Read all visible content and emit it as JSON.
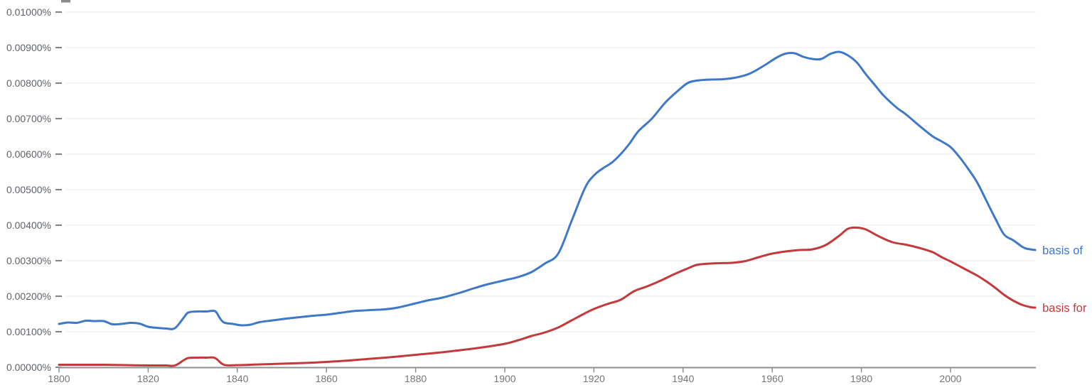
{
  "chart_data": {
    "type": "line",
    "title": "",
    "xlabel": "",
    "ylabel": "",
    "grid": true,
    "legend_position": "line-end-labels-right",
    "x_axis": {
      "tick_years": [
        1800,
        1820,
        1840,
        1860,
        1880,
        1900,
        1920,
        1940,
        1960,
        1980,
        2000
      ],
      "range": [
        1800,
        2019
      ]
    },
    "y_axis": {
      "unit": "%",
      "range": [
        0,
        0.01
      ],
      "ticks": [
        {
          "label": "0.00000%",
          "value": 0.0
        },
        {
          "label": "0.00100%",
          "value": 0.001
        },
        {
          "label": "0.00200%",
          "value": 0.002
        },
        {
          "label": "0.00300%",
          "value": 0.003
        },
        {
          "label": "0.00400%",
          "value": 0.004
        },
        {
          "label": "0.00500%",
          "value": 0.005
        },
        {
          "label": "0.00600%",
          "value": 0.006
        },
        {
          "label": "0.00700%",
          "value": 0.007
        },
        {
          "label": "0.00800%",
          "value": 0.008
        },
        {
          "label": "0.00900%",
          "value": 0.009
        },
        {
          "label": "0.01000%",
          "value": 0.01
        }
      ]
    },
    "series": [
      {
        "name": "basis of",
        "color": "#3e78c8",
        "points": [
          [
            1800,
            0.00122
          ],
          [
            1802,
            0.00126
          ],
          [
            1804,
            0.00125
          ],
          [
            1806,
            0.00131
          ],
          [
            1808,
            0.0013
          ],
          [
            1810,
            0.0013
          ],
          [
            1812,
            0.00121
          ],
          [
            1814,
            0.00122
          ],
          [
            1816,
            0.00125
          ],
          [
            1818,
            0.00123
          ],
          [
            1820,
            0.00114
          ],
          [
            1822,
            0.00111
          ],
          [
            1824,
            0.00109
          ],
          [
            1826,
            0.0011
          ],
          [
            1828,
            0.0014
          ],
          [
            1829,
            0.00154
          ],
          [
            1831,
            0.00157
          ],
          [
            1833,
            0.00157
          ],
          [
            1835,
            0.00158
          ],
          [
            1836,
            0.0014
          ],
          [
            1837,
            0.00126
          ],
          [
            1839,
            0.00122
          ],
          [
            1841,
            0.00118
          ],
          [
            1843,
            0.0012
          ],
          [
            1845,
            0.00127
          ],
          [
            1848,
            0.00132
          ],
          [
            1851,
            0.00137
          ],
          [
            1854,
            0.00141
          ],
          [
            1857,
            0.00145
          ],
          [
            1860,
            0.00148
          ],
          [
            1863,
            0.00153
          ],
          [
            1866,
            0.00158
          ],
          [
            1870,
            0.00161
          ],
          [
            1873,
            0.00163
          ],
          [
            1876,
            0.00168
          ],
          [
            1880,
            0.0018
          ],
          [
            1883,
            0.00189
          ],
          [
            1886,
            0.00196
          ],
          [
            1890,
            0.0021
          ],
          [
            1893,
            0.00222
          ],
          [
            1896,
            0.00233
          ],
          [
            1900,
            0.00245
          ],
          [
            1903,
            0.00254
          ],
          [
            1906,
            0.00268
          ],
          [
            1909,
            0.00292
          ],
          [
            1912,
            0.0032
          ],
          [
            1915,
            0.00412
          ],
          [
            1918,
            0.00505
          ],
          [
            1920,
            0.0054
          ],
          [
            1922,
            0.0056
          ],
          [
            1924,
            0.00576
          ],
          [
            1926,
            0.006
          ],
          [
            1928,
            0.0063
          ],
          [
            1930,
            0.00665
          ],
          [
            1933,
            0.007
          ],
          [
            1936,
            0.00745
          ],
          [
            1939,
            0.0078
          ],
          [
            1941,
            0.008
          ],
          [
            1943,
            0.00807
          ],
          [
            1946,
            0.0081
          ],
          [
            1949,
            0.00811
          ],
          [
            1952,
            0.00816
          ],
          [
            1955,
            0.00827
          ],
          [
            1958,
            0.00848
          ],
          [
            1961,
            0.00872
          ],
          [
            1963,
            0.00883
          ],
          [
            1965,
            0.00884
          ],
          [
            1967,
            0.00874
          ],
          [
            1969,
            0.00868
          ],
          [
            1971,
            0.00868
          ],
          [
            1973,
            0.00882
          ],
          [
            1975,
            0.00888
          ],
          [
            1977,
            0.00878
          ],
          [
            1979,
            0.00858
          ],
          [
            1981,
            0.00825
          ],
          [
            1983,
            0.00795
          ],
          [
            1985,
            0.00765
          ],
          [
            1988,
            0.0073
          ],
          [
            1990,
            0.00712
          ],
          [
            1993,
            0.0068
          ],
          [
            1996,
            0.0065
          ],
          [
            1998,
            0.00636
          ],
          [
            2000,
            0.0062
          ],
          [
            2002,
            0.00592
          ],
          [
            2004,
            0.00558
          ],
          [
            2006,
            0.0052
          ],
          [
            2008,
            0.0047
          ],
          [
            2010,
            0.0042
          ],
          [
            2012,
            0.00374
          ],
          [
            2014,
            0.00358
          ],
          [
            2016,
            0.0034
          ],
          [
            2017,
            0.00334
          ],
          [
            2019,
            0.0033
          ]
        ]
      },
      {
        "name": "basis for",
        "color": "#c43a3c",
        "points": [
          [
            1800,
            7e-05
          ],
          [
            1805,
            7e-05
          ],
          [
            1810,
            7e-05
          ],
          [
            1815,
            6e-05
          ],
          [
            1820,
            5e-05
          ],
          [
            1824,
            5e-05
          ],
          [
            1826,
            5e-05
          ],
          [
            1828,
            0.0002
          ],
          [
            1829,
            0.00026
          ],
          [
            1831,
            0.00027
          ],
          [
            1833,
            0.00027
          ],
          [
            1835,
            0.00026
          ],
          [
            1837,
            7e-05
          ],
          [
            1840,
            6e-05
          ],
          [
            1845,
            8e-05
          ],
          [
            1850,
            0.0001
          ],
          [
            1855,
            0.00012
          ],
          [
            1860,
            0.00015
          ],
          [
            1865,
            0.00019
          ],
          [
            1870,
            0.00024
          ],
          [
            1875,
            0.00029
          ],
          [
            1880,
            0.00035
          ],
          [
            1885,
            0.00041
          ],
          [
            1890,
            0.00048
          ],
          [
            1895,
            0.00056
          ],
          [
            1900,
            0.00066
          ],
          [
            1903,
            0.00076
          ],
          [
            1906,
            0.00088
          ],
          [
            1909,
            0.00098
          ],
          [
            1912,
            0.00112
          ],
          [
            1915,
            0.00132
          ],
          [
            1918,
            0.00152
          ],
          [
            1920,
            0.00164
          ],
          [
            1923,
            0.00178
          ],
          [
            1926,
            0.0019
          ],
          [
            1929,
            0.00214
          ],
          [
            1932,
            0.00228
          ],
          [
            1935,
            0.00244
          ],
          [
            1938,
            0.00262
          ],
          [
            1941,
            0.00278
          ],
          [
            1943,
            0.00288
          ],
          [
            1945,
            0.00291
          ],
          [
            1948,
            0.00293
          ],
          [
            1951,
            0.00294
          ],
          [
            1954,
            0.00299
          ],
          [
            1957,
            0.0031
          ],
          [
            1960,
            0.0032
          ],
          [
            1963,
            0.00326
          ],
          [
            1966,
            0.0033
          ],
          [
            1969,
            0.00332
          ],
          [
            1972,
            0.00344
          ],
          [
            1975,
            0.0037
          ],
          [
            1977,
            0.0039
          ],
          [
            1979,
            0.00393
          ],
          [
            1981,
            0.00388
          ],
          [
            1984,
            0.00368
          ],
          [
            1987,
            0.00352
          ],
          [
            1990,
            0.00345
          ],
          [
            1993,
            0.00336
          ],
          [
            1996,
            0.00324
          ],
          [
            1998,
            0.0031
          ],
          [
            2000,
            0.00298
          ],
          [
            2003,
            0.00278
          ],
          [
            2006,
            0.00258
          ],
          [
            2008,
            0.00242
          ],
          [
            2010,
            0.00224
          ],
          [
            2012,
            0.00204
          ],
          [
            2014,
            0.00188
          ],
          [
            2016,
            0.00176
          ],
          [
            2018,
            0.00169
          ],
          [
            2019,
            0.00168
          ]
        ]
      }
    ],
    "colors": {
      "gridline": "#ececec",
      "axis_line": "#8f8f8f",
      "y_tick_text": "#5f6368",
      "x_tick_text": "#757575"
    }
  }
}
